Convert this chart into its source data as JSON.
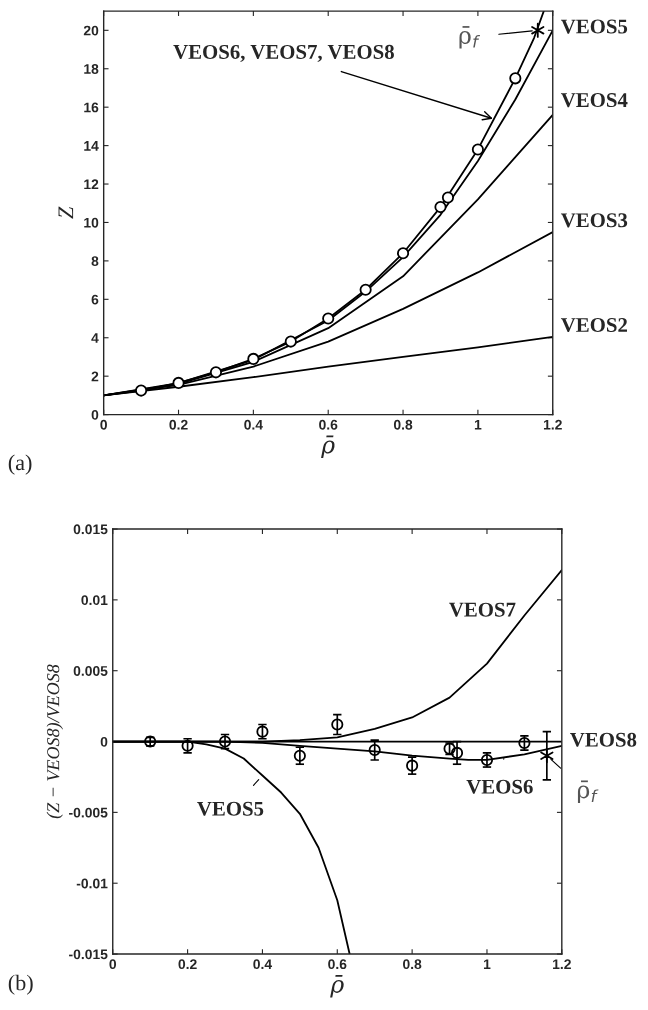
{
  "chart_data": [
    {
      "type": "line",
      "xlabel": "ρ̄",
      "ylabel": "Z",
      "xlim": [
        0,
        1.2
      ],
      "ylim": [
        0,
        21
      ],
      "xticks": [
        0,
        0.2,
        0.4,
        0.6,
        0.8,
        1,
        1.2
      ],
      "yticks": [
        0,
        2,
        4,
        6,
        8,
        10,
        12,
        14,
        16,
        18,
        20
      ],
      "series": [
        {
          "color": "#000000",
          "x": [
            0,
            0.2,
            0.4,
            0.6,
            0.8,
            1.0,
            1.2
          ],
          "values": [
            1,
            1.45,
            1.95,
            2.5,
            3.0,
            3.5,
            4.05
          ]
        },
        {
          "color": "#000000",
          "x": [
            0,
            0.2,
            0.4,
            0.6,
            0.8,
            1.0,
            1.2
          ],
          "values": [
            1,
            1.55,
            2.5,
            3.8,
            5.5,
            7.4,
            9.5
          ]
        },
        {
          "color": "#000000",
          "x": [
            0,
            0.2,
            0.4,
            0.6,
            0.8,
            1.0,
            1.2
          ],
          "values": [
            1,
            1.6,
            2.75,
            4.5,
            7.2,
            11.2,
            15.6
          ]
        },
        {
          "color": "#000000",
          "x": [
            0,
            0.2,
            0.4,
            0.6,
            0.7,
            0.8,
            0.9,
            1.0,
            1.1,
            1.2
          ],
          "values": [
            1,
            1.64,
            2.85,
            4.9,
            6.4,
            8.2,
            10.4,
            13.2,
            16.4,
            20.0
          ]
        },
        {
          "color": "#000000",
          "x": [
            0,
            0.1,
            0.2,
            0.3,
            0.4,
            0.5,
            0.6,
            0.7,
            0.8,
            0.9,
            1.0,
            1.1,
            1.15,
            1.176
          ],
          "values": [
            1,
            1.25,
            1.65,
            2.2,
            2.9,
            3.8,
            5.0,
            6.5,
            8.4,
            10.8,
            13.8,
            17.5,
            19.6,
            21
          ]
        },
        {
          "type": "scatter",
          "marker": "circle",
          "color": "#000000",
          "x": [
            0.1,
            0.2,
            0.3,
            0.4,
            0.5,
            0.6,
            0.7,
            0.8,
            0.9,
            0.92,
            1.0,
            1.1
          ],
          "values": [
            1.25,
            1.65,
            2.2,
            2.9,
            3.8,
            5.0,
            6.5,
            8.4,
            10.8,
            11.3,
            13.8,
            17.5
          ]
        },
        {
          "type": "scatter",
          "marker": "cross",
          "color": "#000000",
          "x": [
            1.16
          ],
          "values": [
            20.0
          ]
        }
      ],
      "annotations": [
        {
          "text": "VEOS6, VEOS7, VEOS8",
          "x": 1.04,
          "y": 15.4
        },
        {
          "text": "ρ̄$_{f}$",
          "x": 1.16,
          "y": 20.0
        },
        {
          "text": "VEOS5",
          "x": 1.2,
          "y": 20.0
        },
        {
          "text": "VEOS4",
          "x": 1.2,
          "y": 15.6
        },
        {
          "text": "VEOS3",
          "x": 1.2,
          "y": 9.5
        },
        {
          "text": "VEOS2",
          "x": 1.2,
          "y": 4.05
        },
        "(a)"
      ]
    },
    {
      "type": "line",
      "xlabel": "ρ̄",
      "ylabel": "(Z − VEOS8)/VEOS8",
      "xlim": [
        0,
        1.2
      ],
      "ylim": [
        -0.015,
        0.015
      ],
      "xticks": [
        0,
        0.2,
        0.4,
        0.6,
        0.8,
        1,
        1.2
      ],
      "yticks": [
        -0.015,
        -0.01,
        -0.005,
        0,
        0.005,
        0.01,
        0.015
      ],
      "series": [
        {
          "color": "#000000",
          "x": [
            0,
            0.2,
            0.25,
            0.3,
            0.35,
            0.4,
            0.45,
            0.5,
            0.55,
            0.6,
            0.633
          ],
          "values": [
            0,
            0,
            -0.0002,
            -0.0005,
            -0.0012,
            -0.0024,
            -0.0036,
            -0.0051,
            -0.0075,
            -0.0112,
            -0.015
          ]
        },
        {
          "color": "#000000",
          "x": [
            0,
            0.3,
            0.4,
            0.5,
            0.6,
            0.7,
            0.8,
            0.9,
            0.95,
            1.0,
            1.1,
            1.2
          ],
          "values": [
            0,
            0,
            -0.0001,
            -0.0003,
            -0.0005,
            -0.0007,
            -0.001,
            -0.0012,
            -0.0013,
            -0.0013,
            -0.0009,
            -0.0003
          ]
        },
        {
          "color": "#000000",
          "x": [
            0,
            0.4,
            0.5,
            0.6,
            0.7,
            0.8,
            0.9,
            1.0,
            1.1,
            1.2
          ],
          "values": [
            0,
            0,
            0.0001,
            0.0003,
            0.0009,
            0.0017,
            0.0031,
            0.0055,
            0.0089,
            0.0121
          ]
        },
        {
          "color": "#000000",
          "x": [
            0,
            1.2
          ],
          "values": [
            0,
            0
          ]
        },
        {
          "type": "scatter",
          "marker": "circle",
          "color": "#000000",
          "x": [
            0.1,
            0.2,
            0.3,
            0.4,
            0.5,
            0.6,
            0.7,
            0.8,
            0.9,
            0.92,
            1.0,
            1.1
          ],
          "values": [
            0,
            -0.0003,
            0,
            0.0007,
            -0.001,
            0.0012,
            -0.0006,
            -0.0017,
            -0.0005,
            -0.0008,
            -0.0013,
            -0.0001
          ],
          "errors": [
            0.0003,
            0.0005,
            0.0005,
            0.0005,
            0.0006,
            0.0007,
            0.0007,
            0.0006,
            0.0004,
            0.0008,
            0.0005,
            0.0005
          ]
        },
        {
          "type": "scatter",
          "marker": "cross",
          "color": "#000000",
          "x": [
            1.16
          ],
          "values": [
            -0.001
          ],
          "errors": [
            0.0017
          ]
        }
      ],
      "annotations": [
        {
          "text": "VEOS7",
          "x": 1.1,
          "y": 0.0089
        },
        {
          "text": "VEOS8",
          "x": 1.2,
          "y": 0
        },
        {
          "text": "VEOS6",
          "x": 1.045,
          "y": -0.0012
        },
        {
          "text": "VEOS5",
          "x": 0.4,
          "y": -0.0024
        },
        {
          "text": "ρ̄$_{f}$",
          "x": 1.16,
          "y": -0.001
        },
        "(b)"
      ]
    }
  ]
}
